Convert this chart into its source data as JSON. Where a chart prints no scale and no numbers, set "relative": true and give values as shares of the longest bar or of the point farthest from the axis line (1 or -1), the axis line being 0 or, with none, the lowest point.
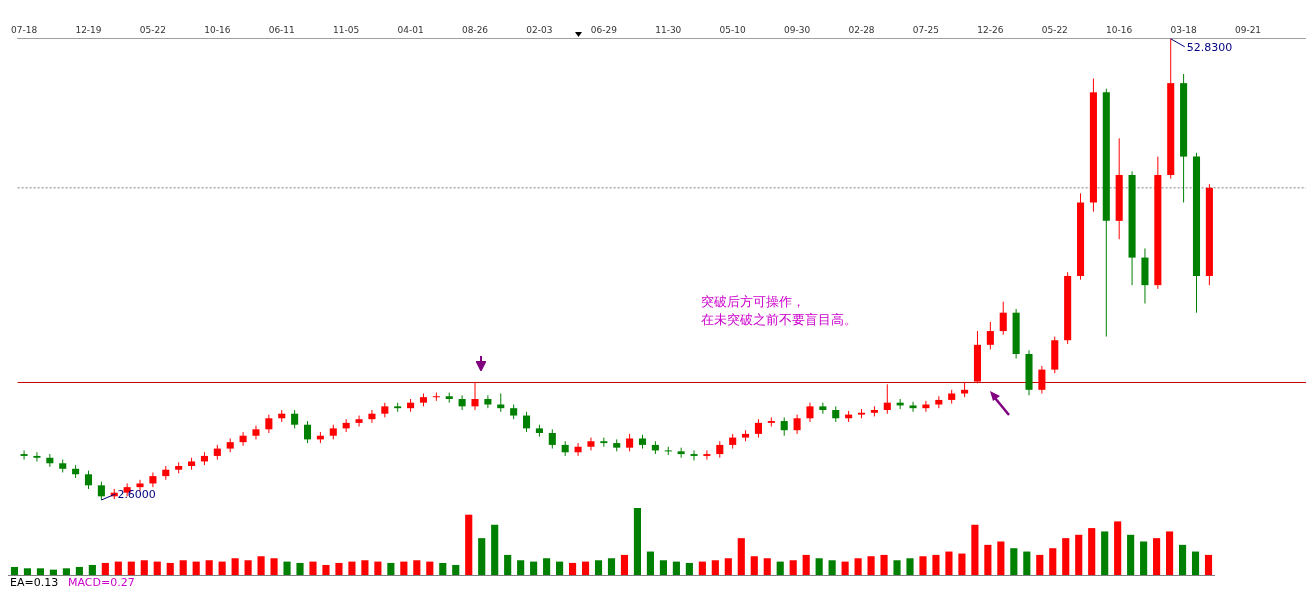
{
  "chart_data": [
    {
      "type": "candlestick",
      "categories": [
        "07-18",
        null,
        null,
        null,
        null,
        "12-19",
        null,
        null,
        null,
        null,
        "05-22",
        null,
        null,
        null,
        null,
        "10-16",
        null,
        null,
        null,
        null,
        "06-11",
        null,
        null,
        null,
        null,
        "11-05",
        null,
        null,
        null,
        null,
        "04-01",
        null,
        null,
        null,
        null,
        "08-26",
        null,
        null,
        null,
        null,
        "02-03",
        null,
        null,
        null,
        null,
        "06-29",
        null,
        null,
        null,
        null,
        "11-30",
        null,
        null,
        null,
        null,
        "05-10",
        null,
        null,
        null,
        null,
        "09-30",
        null,
        null,
        null,
        null,
        "02-28",
        null,
        null,
        null,
        null,
        "07-25",
        null,
        null,
        null,
        null,
        "12-26",
        null,
        null,
        null,
        null,
        "05-22",
        null,
        null,
        null,
        null,
        "10-16",
        null,
        null,
        null,
        null,
        "03-18",
        null,
        null,
        null,
        null,
        "09-21",
        null,
        null,
        null,
        null
      ],
      "ohlc": [
        [
          7.6,
          8.0,
          7.0,
          7.4
        ],
        [
          7.4,
          7.8,
          6.8,
          7.2
        ],
        [
          7.2,
          7.6,
          6.2,
          6.6
        ],
        [
          6.6,
          7.0,
          5.6,
          6.0
        ],
        [
          6.0,
          6.4,
          5.0,
          5.4
        ],
        [
          5.4,
          5.8,
          3.8,
          4.2
        ],
        [
          4.2,
          4.6,
          2.6,
          3.0
        ],
        [
          3.0,
          3.8,
          2.7,
          3.4
        ],
        [
          3.4,
          4.4,
          3.0,
          4.0
        ],
        [
          4.0,
          4.8,
          3.6,
          4.4
        ],
        [
          4.4,
          5.6,
          4.0,
          5.2
        ],
        [
          5.2,
          6.3,
          4.8,
          5.9
        ],
        [
          5.9,
          6.7,
          5.5,
          6.3
        ],
        [
          6.3,
          7.2,
          5.9,
          6.8
        ],
        [
          6.8,
          7.8,
          6.4,
          7.4
        ],
        [
          7.4,
          8.6,
          7.0,
          8.2
        ],
        [
          8.2,
          9.3,
          7.8,
          8.9
        ],
        [
          8.9,
          10.0,
          8.5,
          9.6
        ],
        [
          9.6,
          10.7,
          9.2,
          10.3
        ],
        [
          10.3,
          11.9,
          9.9,
          11.5
        ],
        [
          11.5,
          12.4,
          11.1,
          12.0
        ],
        [
          12.0,
          12.4,
          10.4,
          10.8
        ],
        [
          10.8,
          11.2,
          8.8,
          9.2
        ],
        [
          9.2,
          10.0,
          8.8,
          9.6
        ],
        [
          9.6,
          10.8,
          9.2,
          10.4
        ],
        [
          10.4,
          11.4,
          10.0,
          11.0
        ],
        [
          11.0,
          11.8,
          10.6,
          11.4
        ],
        [
          11.4,
          12.4,
          11.0,
          12.0
        ],
        [
          12.0,
          13.2,
          11.6,
          12.8
        ],
        [
          12.8,
          13.2,
          12.2,
          12.6
        ],
        [
          12.6,
          13.6,
          12.2,
          13.2
        ],
        [
          13.2,
          14.2,
          12.8,
          13.8
        ],
        [
          13.8,
          14.3,
          13.4,
          13.9
        ],
        [
          13.9,
          14.3,
          13.2,
          13.6
        ],
        [
          13.6,
          14.0,
          12.4,
          12.8
        ],
        [
          12.8,
          15.4,
          12.4,
          13.6
        ],
        [
          13.6,
          14.0,
          12.6,
          13.0
        ],
        [
          13.0,
          14.2,
          12.2,
          12.6
        ],
        [
          12.6,
          13.0,
          11.4,
          11.8
        ],
        [
          11.8,
          12.2,
          10.0,
          10.4
        ],
        [
          10.4,
          10.8,
          9.5,
          9.9
        ],
        [
          9.9,
          10.3,
          8.2,
          8.6
        ],
        [
          8.6,
          9.0,
          7.4,
          7.8
        ],
        [
          7.8,
          8.8,
          7.4,
          8.4
        ],
        [
          8.4,
          9.4,
          8.0,
          9.0
        ],
        [
          9.0,
          9.4,
          8.4,
          8.8
        ],
        [
          8.8,
          9.2,
          7.9,
          8.3
        ],
        [
          8.3,
          9.8,
          7.9,
          9.3
        ],
        [
          9.3,
          9.7,
          8.2,
          8.6
        ],
        [
          8.6,
          9.0,
          7.6,
          8.0
        ],
        [
          8.0,
          8.4,
          7.5,
          7.9
        ],
        [
          7.9,
          8.3,
          7.2,
          7.6
        ],
        [
          7.6,
          8.0,
          6.9,
          7.4
        ],
        [
          7.4,
          8.0,
          7.0,
          7.6
        ],
        [
          7.6,
          9.0,
          7.2,
          8.6
        ],
        [
          8.6,
          9.8,
          8.2,
          9.4
        ],
        [
          9.4,
          10.2,
          9.0,
          9.8
        ],
        [
          9.8,
          11.4,
          9.4,
          11.0
        ],
        [
          11.0,
          11.6,
          10.6,
          11.2
        ],
        [
          11.2,
          11.6,
          9.6,
          10.2
        ],
        [
          10.2,
          11.9,
          9.8,
          11.5
        ],
        [
          11.5,
          13.2,
          11.1,
          12.8
        ],
        [
          12.8,
          13.2,
          12.0,
          12.4
        ],
        [
          12.4,
          12.8,
          11.1,
          11.5
        ],
        [
          11.5,
          12.3,
          11.1,
          11.9
        ],
        [
          11.9,
          12.5,
          11.5,
          12.1
        ],
        [
          12.1,
          12.8,
          11.7,
          12.4
        ],
        [
          12.4,
          15.2,
          12.0,
          13.2
        ],
        [
          13.2,
          13.6,
          12.5,
          12.9
        ],
        [
          12.9,
          13.3,
          12.2,
          12.6
        ],
        [
          12.6,
          13.4,
          12.2,
          13.0
        ],
        [
          13.0,
          13.9,
          12.6,
          13.5
        ],
        [
          13.5,
          14.6,
          13.1,
          14.2
        ],
        [
          14.2,
          15.4,
          13.8,
          14.6
        ],
        [
          15.5,
          21.0,
          15.3,
          19.5
        ],
        [
          19.5,
          22.0,
          19.0,
          21.0
        ],
        [
          21.0,
          24.2,
          20.6,
          23.0
        ],
        [
          23.0,
          23.4,
          18.0,
          18.5
        ],
        [
          18.5,
          18.9,
          14.0,
          14.6
        ],
        [
          14.6,
          17.2,
          14.2,
          16.8
        ],
        [
          16.8,
          20.4,
          16.4,
          20.0
        ],
        [
          20.0,
          27.4,
          19.6,
          27.0
        ],
        [
          27.0,
          36.0,
          26.6,
          35.0
        ],
        [
          35.0,
          48.5,
          34.0,
          47.0
        ],
        [
          47.0,
          47.4,
          20.4,
          33.0
        ],
        [
          33.0,
          42.0,
          31.0,
          38.0
        ],
        [
          38.0,
          38.4,
          26.0,
          29.0
        ],
        [
          29.0,
          30.0,
          24.0,
          26.0
        ],
        [
          26.0,
          40.0,
          25.6,
          38.0
        ],
        [
          38.0,
          52.83,
          37.6,
          48.0
        ],
        [
          48.0,
          49.0,
          35.0,
          40.0
        ],
        [
          40.0,
          40.4,
          23.0,
          27.0
        ],
        [
          27.0,
          37.0,
          26.0,
          36.6
        ],
        null,
        null,
        null,
        null,
        null,
        null,
        null
      ],
      "colors": [
        "#008000",
        "#008000",
        "#008000",
        "#008000",
        "#008000",
        "#008000",
        "#008000",
        "#ff0000",
        "#ff0000",
        "#ff0000",
        "#ff0000",
        "#ff0000",
        "#ff0000",
        "#ff0000",
        "#ff0000",
        "#ff0000",
        "#ff0000",
        "#ff0000",
        "#ff0000",
        "#ff0000",
        "#ff0000",
        "#008000",
        "#008000",
        "#ff0000",
        "#ff0000",
        "#ff0000",
        "#ff0000",
        "#ff0000",
        "#ff0000",
        "#008000",
        "#ff0000",
        "#ff0000",
        "#ff0000",
        "#008000",
        "#008000",
        "#ff0000",
        "#008000",
        "#008000",
        "#008000",
        "#008000",
        "#008000",
        "#008000",
        "#008000",
        "#ff0000",
        "#ff0000",
        "#008000",
        "#008000",
        "#ff0000",
        "#008000",
        "#008000",
        "#008000",
        "#008000",
        "#008000",
        "#ff0000",
        "#ff0000",
        "#ff0000",
        "#ff0000",
        "#ff0000",
        "#ff0000",
        "#008000",
        "#ff0000",
        "#ff0000",
        "#008000",
        "#008000",
        "#ff0000",
        "#ff0000",
        "#ff0000",
        "#ff0000",
        "#008000",
        "#008000",
        "#ff0000",
        "#ff0000",
        "#ff0000",
        "#ff0000",
        "#ff0000",
        "#ff0000",
        "#ff0000",
        "#008000",
        "#008000",
        "#ff0000",
        "#ff0000",
        "#ff0000",
        "#ff0000",
        "#ff0000",
        "#008000",
        "#ff0000",
        "#008000",
        "#008000",
        "#ff0000",
        "#ff0000",
        "#008000",
        "#008000",
        "#ff0000",
        null,
        null,
        null,
        null,
        null,
        null,
        null
      ],
      "tick_labels": "x",
      "ref_lines": [
        {
          "axis": "y",
          "value": 15.4,
          "color": "#c00000"
        },
        {
          "axis": "y",
          "value": 36.6,
          "color": "#808080",
          "line_style": "dotted"
        }
      ],
      "annotations": [
        "52.8300",
        "2.6000",
        "突破后方可操作，",
        "在未突破之前不要盲目高。"
      ]
    },
    {
      "type": "bar",
      "relative": true,
      "categories": [
        null,
        null,
        null,
        null,
        null,
        null,
        null,
        null,
        null,
        null,
        null,
        null,
        null,
        null,
        null,
        null,
        null,
        null,
        null,
        null,
        null,
        null,
        null,
        null,
        null,
        null,
        null,
        null,
        null,
        null,
        null,
        null,
        null,
        null,
        null,
        null,
        null,
        null,
        null,
        null,
        null,
        null,
        null,
        null,
        null,
        null,
        null,
        null,
        null,
        null,
        null,
        null,
        null,
        null,
        null,
        null,
        null,
        null,
        null,
        null,
        null,
        null,
        null,
        null,
        null,
        null,
        null,
        null,
        null,
        null,
        null,
        null,
        null,
        null,
        null,
        null,
        null,
        null,
        null,
        null,
        null,
        null,
        null,
        null,
        null,
        null,
        null,
        null,
        null,
        null,
        null,
        null,
        null
      ],
      "values": [
        0.12,
        0.1,
        0.1,
        0.08,
        0.1,
        0.12,
        0.15,
        0.18,
        0.2,
        0.2,
        0.22,
        0.2,
        0.18,
        0.22,
        0.2,
        0.22,
        0.2,
        0.25,
        0.22,
        0.28,
        0.25,
        0.2,
        0.18,
        0.2,
        0.15,
        0.18,
        0.2,
        0.22,
        0.2,
        0.18,
        0.2,
        0.22,
        0.2,
        0.18,
        0.15,
        0.9,
        0.55,
        0.75,
        0.3,
        0.22,
        0.2,
        0.25,
        0.2,
        0.18,
        0.2,
        0.22,
        0.25,
        0.3,
        1.0,
        0.35,
        0.22,
        0.2,
        0.18,
        0.2,
        0.22,
        0.25,
        0.55,
        0.28,
        0.25,
        0.2,
        0.22,
        0.3,
        0.25,
        0.22,
        0.2,
        0.25,
        0.28,
        0.3,
        0.22,
        0.25,
        0.28,
        0.3,
        0.35,
        0.32,
        0.75,
        0.45,
        0.5,
        0.4,
        0.35,
        0.3,
        0.4,
        0.55,
        0.6,
        0.7,
        0.65,
        0.8,
        0.6,
        0.5,
        0.55,
        0.65,
        0.45,
        0.35,
        0.3
      ],
      "colors": [
        "#008000",
        "#008000",
        "#008000",
        "#008000",
        "#008000",
        "#008000",
        "#008000",
        "#ff0000",
        "#ff0000",
        "#ff0000",
        "#ff0000",
        "#ff0000",
        "#ff0000",
        "#ff0000",
        "#ff0000",
        "#ff0000",
        "#ff0000",
        "#ff0000",
        "#ff0000",
        "#ff0000",
        "#ff0000",
        "#008000",
        "#008000",
        "#ff0000",
        "#ff0000",
        "#ff0000",
        "#ff0000",
        "#ff0000",
        "#ff0000",
        "#008000",
        "#ff0000",
        "#ff0000",
        "#ff0000",
        "#008000",
        "#008000",
        "#ff0000",
        "#008000",
        "#008000",
        "#008000",
        "#008000",
        "#008000",
        "#008000",
        "#008000",
        "#ff0000",
        "#ff0000",
        "#008000",
        "#008000",
        "#ff0000",
        "#008000",
        "#008000",
        "#008000",
        "#008000",
        "#008000",
        "#ff0000",
        "#ff0000",
        "#ff0000",
        "#ff0000",
        "#ff0000",
        "#ff0000",
        "#008000",
        "#ff0000",
        "#ff0000",
        "#008000",
        "#008000",
        "#ff0000",
        "#ff0000",
        "#ff0000",
        "#ff0000",
        "#008000",
        "#008000",
        "#ff0000",
        "#ff0000",
        "#ff0000",
        "#ff0000",
        "#ff0000",
        "#ff0000",
        "#ff0000",
        "#008000",
        "#008000",
        "#ff0000",
        "#ff0000",
        "#ff0000",
        "#ff0000",
        "#ff0000",
        "#008000",
        "#ff0000",
        "#008000",
        "#008000",
        "#ff0000",
        "#ff0000",
        "#008000",
        "#008000",
        "#ff0000"
      ],
      "annotations": [
        "EA=0.13",
        "MACD=0.27"
      ]
    }
  ]
}
